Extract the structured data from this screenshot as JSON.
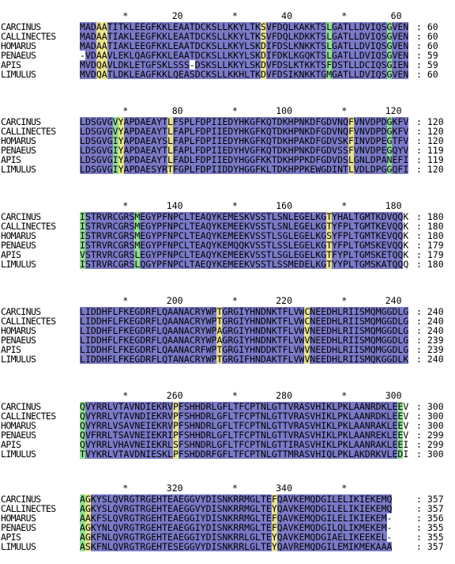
{
  "alignment": {
    "names": [
      "CARCINUS",
      "CALLINECTES",
      "HOMARUS",
      "PENAEUS",
      "APIS",
      "LIMULUS"
    ],
    "blocks": [
      {
        "ruler": "        *        20         *        40         *        60",
        "rows": [
          {
            "name": "CARCINUS",
            "seq": "MADAATITKLEEGFKKLEAATDCKSLLKKYLTKSVFDQLKAKKTSLGATLLDVIQSGVEN",
            "end": "60",
            "shade": "bbbyybbbbbbbbbbbbbbbbbbbbbbbbbbbbybbbbbbbbbbbgbbbbbbbbbbgbbb"
          },
          {
            "name": "CALLINECTES",
            "seq": "MADAATIAKLEEGFKKLEAATDCKSLLKKYLTKSVFDQLKDKKTSLGATLLDVIQSGVEN",
            "end": "60",
            "shade": "bbbyybbbbbbbbbbbbbbbbbbbbbbbbbbbbybbbbbbbbbbbgbbbbbbbbbbgbbb"
          },
          {
            "name": "HOMARUS",
            "seq": "MADAATIAKLEEGFKKLEAATDCKSLLKKYLSKDIFDSLKNKKTSLGATLLDVIQSGVEN",
            "end": "60",
            "shade": "bbbyybbbbbbbbbbbbbbbbbbbbbbbbbbbbybbbbbbbbbbbgbbbbbbbbbbgbbb"
          },
          {
            "name": "PENAEUS",
            "seq": "-VDAAVLEKLQAGFKKLEAATDCKSLLKKYLSKDIFDKLKGQKTSLGATLLDVIQSGVEN",
            "end": "59",
            "shade": "wbbyybbbbbbbbbbbbbbbbbbbbbbbbbbbbybbbbbbbbbbbgbbbbbbbbbbgbbb"
          },
          {
            "name": "APIS",
            "seq": "MVDQAVLDKLETGFSKLSSS-DSKSLLKKYLSKDVFDSLKTKKTSFDSTLLDCIQSGIEN",
            "end": "59",
            "shade": "bbbyybbbbbbbbbbbbbbbbbbbbbbbbbbbbybbbbbbbbbbbgbbbbbbbbbbgbbb"
          },
          {
            "name": "LIMULUS",
            "seq": "MVDQATLDKLEAGFKKLQEASDCKSLLKKHLTKDVFDSIKNKKTGMGATLLDVIQSGVEN",
            "end": "60",
            "shade": "bbbyybbbbbbbbbbbbbbbbbbbbbbbbbbbbybbbbbbbbbbbgbbbbbbbbbbgbbb"
          }
        ]
      },
      {
        "ruler": "        *        80         *       100         *       120",
        "rows": [
          {
            "name": "CARCINUS",
            "seq": "LDSGVGVYAPDAEAYTLFSPLFDPIIEDYHKGFKQTDKHPNKDFGDVNQFVNVDPDGKFV",
            "end": "120",
            "shade": "bbbbbbgybbbbbbbbybbbbbbbbbbbbbbbbbbbbbbbbbbbbbbbbybbbbbbgbbb"
          },
          {
            "name": "CALLINECTES",
            "seq": "LDSGVGVYAPDAEAYTLFAPLFDPIIEDYHKGFKQTDKHPNKDFGDVNQFVNVDPDGKFV",
            "end": "120",
            "shade": "bbbbbbgybbbbbbbbybbbbbbbbbbbbbbbbbbbbbbbbbbbbbbbbybbbbbbgbbb"
          },
          {
            "name": "HOMARUS",
            "seq": "LDSGVGIYAPDAEAYSLFAPLFDPIIEDYHKGFKQTDKHPAKDFGDVSKFINVDPEGTFV",
            "end": "120",
            "shade": "bbbbbbgybbbbbbbbybbbbbbbbbbbbbbbbbbbbbbbbbbbbbbbbybbbbbbgbbb"
          },
          {
            "name": "PENAEUS",
            "seq": "LDSGVGIYAPDAEAYTLFAPLFDPIIEDYHVGFKQTDKHPNKDFGDVSSFVNVDPEGQYV",
            "end": "119",
            "shade": "bbbbbbgybbbbbbbbybbbbbbbbbbbbbbbbbbbbbbbbbbbbbbbbybbbbbbgbbb"
          },
          {
            "name": "APIS",
            "seq": "LDSGVGIYAPDAEAYTLFADLFDPIIEDYHGGFKKTDKHPPKDFGDVDSLGNLDPANEFI",
            "end": "119",
            "shade": "bbbbbbgybbbbbbbbybbbbbbbbbbbbbbbbbbbbbbbbbbbbbbbbybbbbbbgbbb"
          },
          {
            "name": "LIMULUS",
            "seq": "LDSGVGIYAPDAESYRTFGPLFDPIIDDYHGGFKLTDKHPPKEWGDINTLVDLDPGGQFI",
            "end": "120",
            "shade": "bbbbbbgybbbbbbbbybbbbbbbbbbbbbbbbbbbbbbbbbbbbbbbbybbbbbbgbbb"
          }
        ]
      },
      {
        "ruler": "        *       140         *       160         *       180",
        "rows": [
          {
            "name": "CARCINUS",
            "seq": "ISTRVRCGRSMEGYPFNPCLTEAQYKEMESKVSSTLSNLEGELKGTYHALTGMTKDVQQK",
            "end": "180",
            "shade": "gbbbbbbbbbgbbbbbbbbbbbbbbbbbbbbbbbbbbbbbbbbbbybbbbbbbbbbbbb"
          },
          {
            "name": "CALLINECTES",
            "seq": "ISTRVRCGRSMEGYPFNPCLTEAQYKEMEEKVSSTLSNLEGELKGTYFPLTGMTKEVQQK",
            "end": "180",
            "shade": "gbbbbbbbbbgbbbbbbbbbbbbbbbbbbbbbbbbbbbbbbbbbbybbbbbbbbbbbbb"
          },
          {
            "name": "HOMARUS",
            "seq": "ISTRVRCGRSMEGYPFNPCLTEAQYKEMEEKVSSTLSGLEGELKGSYFPLTGMTKEVQQK",
            "end": "180",
            "shade": "gbbbbbbbbbgbbbbbbbbbbbbbbbbbbbbbbbbbbbbbbbbbbybbbbbbbbbbbbb"
          },
          {
            "name": "PENAEUS",
            "seq": "ISTRVRCGRSMEGYPFNPCLTEAQYKEMQQKVSSTLSSLEGELKGTYFPLTGMSKEVQQK",
            "end": "179",
            "shade": "gbbbbbbbbbgbbbbbbbbbbbbbbbbbbbbbbbbbbbbbbbbbbybbbbbbbbbbbbb"
          },
          {
            "name": "APIS",
            "seq": "VSTRVRCGRSLEGYPFNPCLTEAQYKEMEEKVSSTLSGLEGELKGTFYPLTGMSKETQQK",
            "end": "179",
            "shade": "gbbbbbbbbbgbbbbbbbbbbbbbbbbbbbbbbbbbbbbbbbbbbybbbbbbbbbbbbb"
          },
          {
            "name": "LIMULUS",
            "seq": "ISTRVRCGRSLQGYPFNPCLTAEQYKEMEEKVSSTLSSMEDELKGTYYPLTGMSKATQQQ",
            "end": "180",
            "shade": "gbbbbbbbbbgbbbbbbbbbbbbbbbbbbbbbbbbbbbbbbbbbbybbbbbbbbbbbbb"
          }
        ]
      },
      {
        "ruler": "        *       200         *       220         *       240",
        "rows": [
          {
            "name": "CARCINUS",
            "seq": "LIDDHFLFKEGDRFLQAANACRYWPTGRGIYHNDNKTFLVWCNEEDHLRIISMQMGGDLG",
            "end": "240",
            "shade": "bbbbbbbbbbbbbbbbbbbbbbbbbybbbbbbbbbbbbbbbybbbbbbbbbbbbbbbbbb"
          },
          {
            "name": "CALLINECTES",
            "seq": "LIDDHFLFKEGDRFLQAANACRYWPTGRGIYHNDNKTFLVWCNEEDHLRIISMQMGGDLG",
            "end": "240",
            "shade": "bbbbbbbbbbbbbbbbbbbbbbbbbybbbbbbbbbbbbbbbybbbbbbbbbbbbbbbbbb"
          },
          {
            "name": "HOMARUS",
            "seq": "LIDDHFLFKEGDRFLQAANACRYWPAGRGIYHNDNKTFLVWVNEEDHLRIISMQMGGDLG",
            "end": "240",
            "shade": "bbbbbbbbbbbbbbbbbbbbbbbbbybbbbbbbbbbbbbbbybbbbbbbbbbbbbbbbbb"
          },
          {
            "name": "PENAEUS",
            "seq": "LIDDHFLFKEGDRFLQAANACRYWPAGRGIYHNDNKTFLVWVNEEDHLRIISMQMGGDLG",
            "end": "239",
            "shade": "bbbbbbbbbbbbbbbbbbbbbbbbbybbbbbbbbbbbbbbbybbbbbbbbbbbbbbbbbb"
          },
          {
            "name": "APIS",
            "seq": "LIDDHFLFKEGDRFLQAANACRFWPTGRGIYHNDDKTFLVWVNEEDHLRIISMQMGGDLG",
            "end": "239",
            "shade": "bbbbbbbbbbbbbbbbbbbbbbbbbybbbbbbbbbbbbbbbybbbbbbbbbbbbbbbbbb"
          },
          {
            "name": "LIMULUS",
            "seq": "LIDDHFLFKEGDRFLQTANACRYWPTGRGIFHNDAKTFLVWVNEEDHLRIISMQKGGDLK",
            "end": "240",
            "shade": "bbbbbbbbbbbbbbbbbbbbbbbbbybbbbbbbbbbbbbbbybbbbbbbbbbbbbbbbbb"
          }
        ]
      },
      {
        "ruler": "        *       260         *       280         *       300",
        "rows": [
          {
            "name": "CARCINUS",
            "seq": "QVYRRLVTAVNDIEKRVPFSHHDRLGFLTFCPTNLGTTVRASVHIKLPKLAANRDKLEEV",
            "end": "300",
            "shade": "gbbbbbbbbbbbbbbbbybbbbbbbbbbbbbbbbbbbbbbbbbbbbbbbbbbbbbbbbg"
          },
          {
            "name": "CALLINECTES",
            "seq": "QVYRRLVTAVNDIEKRVPFSHHDRLGFLTFCPTNLGTTVRASVHIKLPKLAANRDKLEEV",
            "end": "300",
            "shade": "gbbbbbbbbbbbbbbbbybbbbbbbbbbbbbbbbbbbbbbbbbbbbbbbbbbbbbbbbg"
          },
          {
            "name": "HOMARUS",
            "seq": "QVYRRLVSAVNEIEKRVPFSHNDRLGFLTFCPTNLGTTVRASVHIKLPKLAANRAKLEEV",
            "end": "300",
            "shade": "gbbbbbbbbbbbbbbbbybbbbbbbbbbbbbbbbbbbbbbbbbbbbbbbbbbbbbbbbg"
          },
          {
            "name": "PENAEUS",
            "seq": "QVFRRLTSAVNEIEKRIPFSHHDRLGFLTFCPTNLGTTVRASVHIKLPKLAANREKLEEV",
            "end": "299",
            "shade": "gbbbbbbbbbbbbbbbbybbbbbbbbbbbbbbbbbbbbbbbbbbbbbbbbbbbbbbbbg"
          },
          {
            "name": "APIS",
            "seq": "QVYRRLVHAVNEIEKRLSFSHNDRLGFLTFCPTNLGTTIRASVHIKLPKLAANRAKLEEI",
            "end": "299",
            "shade": "gbbbbbbbbbbbbbbbbybbbbbbbbbbbbbbbbbbbbbbbbbbbbbbbbbbbbbbbbg"
          },
          {
            "name": "LIMULUS",
            "seq": "TVYKRLVTAVDNIESKLPFSHDDRFGFLTFCPTNLGTTMRASVHIQLPKLAKDRKVLEDI",
            "end": "300",
            "shade": "gbbbbbbbbbbbbbbbbybbbbbbbbbbbbbbbbbbbbbbbbbbbbbbbbbbbbbbbbg"
          }
        ]
      },
      {
        "ruler": "        *       320         *       340         *",
        "rows": [
          {
            "name": "CARCINUS",
            "seq": "AGKYSLQVRGTRGEHTEAEGGVYDISNKRRMGLTEFQAVKEMQDGILELIKIEKEMQ",
            "end": "357",
            "shade": "gybbbbbbbbbbbbbbbbbbbbbbbbbbbbbbbbbybbbbbbbbbbbbbbbbbbbbbbg"
          },
          {
            "name": "CALLINECTES",
            "seq": "AGKYSLQVRGTRGEHTEAEGGVYDISNKRRMGLTEYQAVKEMQDGILELIKIEKEMQ",
            "end": "357",
            "shade": "gybbbbbbbbbbbbbbbbbbbbbbbbbbbbbbbbbybbbbbbbbbbbbbbbbbbbbbbg"
          },
          {
            "name": "HOMARUS",
            "seq": "AAKFSLQVRGTRGEHTEAEGGIYDISNKRRMGLTEFQAVKEMQDGILELIKIEKEM-",
            "end": "356",
            "shade": "gybbbbbbbbbbbbbbbbbbbbbbbbbbbbbbbbbybbbbbbbbbbbbbbbbbbbbbbg"
          },
          {
            "name": "PENAEUS",
            "seq": "AGKYNLQVRGTRGEHTEAEGGIYDISNKRRMGLTEFQAVKEMQDGILQLIKMEKEM-",
            "end": "355",
            "shade": "gybbbbbbbbbbbbbbbbbbbbbbbbbbbbbbbbbybbbbbbbbbbbbbbbbbbbbbbg"
          },
          {
            "name": "APIS",
            "seq": "AGKFNLQVRGTRGEHTEAEGGIYDISNKRRLGLTEYQAVKEMQDGIAELIKEEKEL-",
            "end": "355",
            "shade": "gybbbbbbbbbbbbbbbbbbbbbbbbbbbbbbbbbybbbbbbbbbbbbbbbbbbbbbbg"
          },
          {
            "name": "LIMULUS",
            "seq": "ASKFNLQVRGTRGEHTESEGGVYDISNKRRLGLTEYQAVREMQDGILEMIKMEKAAA",
            "end": "357",
            "shade": "gybbbbbbbbbbbbbbbbbbbbbbbbbbbbbbbbbybbbbbbbbbbbbbbbbbbbbbbg"
          }
        ]
      }
    ]
  }
}
